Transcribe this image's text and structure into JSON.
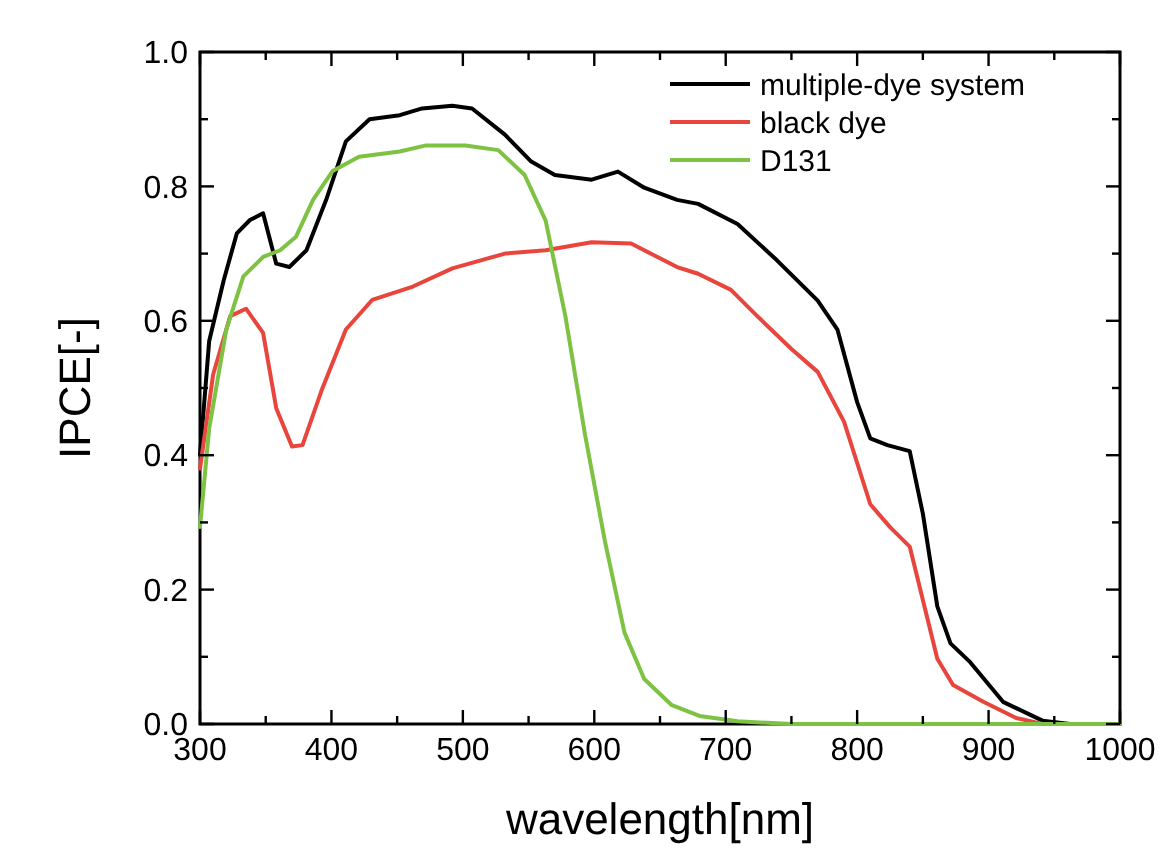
{
  "chart_data": {
    "type": "line",
    "xlabel": "wavelength[nm]",
    "ylabel": "IPCE[-]",
    "xlim": [
      300,
      1000
    ],
    "xticks": [
      300,
      {
        "value": 350,
        "label": null
      },
      400,
      {
        "value": 450,
        "label": null
      },
      500,
      {
        "value": 550,
        "label": null
      },
      600,
      {
        "value": 650,
        "label": null
      },
      700,
      {
        "value": 750,
        "label": null
      },
      800,
      {
        "value": 850,
        "label": null
      },
      900,
      {
        "value": 950,
        "label": null
      },
      1000
    ],
    "ylim": [
      0,
      1
    ],
    "yticks": [
      {
        "value": 0,
        "label": "0.0"
      },
      {
        "value": 0.1,
        "label": null
      },
      {
        "value": 0.2,
        "label": "0.2"
      },
      {
        "value": 0.3,
        "label": null
      },
      {
        "value": 0.4,
        "label": "0.4"
      },
      {
        "value": 0.5,
        "label": null
      },
      {
        "value": 0.6,
        "label": "0.6"
      },
      {
        "value": 0.7,
        "label": null
      },
      {
        "value": 0.8,
        "label": "0.8"
      },
      {
        "value": 0.9,
        "label": null
      },
      {
        "value": 1,
        "label": "1.0"
      }
    ],
    "grid": false,
    "legend": "top right",
    "marker": "none",
    "line_style": "solid",
    "series": [
      {
        "name": "multiple-dye system",
        "color": "#000000",
        "x": [
          300,
          307,
          318,
          328,
          338,
          348,
          358,
          368,
          381,
          396,
          411,
          429,
          452,
          469,
          492,
          507,
          532,
          552,
          570,
          598,
          618,
          638,
          663,
          679,
          709,
          739,
          770,
          785,
          800,
          810,
          823,
          840,
          850,
          861,
          871,
          886,
          911,
          941,
          962,
          1000
        ],
        "values": [
          0.4,
          0.57,
          0.66,
          0.73,
          0.75,
          0.76,
          0.685,
          0.68,
          0.705,
          0.78,
          0.867,
          0.9,
          0.906,
          0.916,
          0.92,
          0.916,
          0.877,
          0.837,
          0.817,
          0.81,
          0.822,
          0.798,
          0.78,
          0.774,
          0.744,
          0.69,
          0.63,
          0.587,
          0.479,
          0.425,
          0.415,
          0.406,
          0.313,
          0.175,
          0.12,
          0.092,
          0.033,
          0.005,
          0,
          0
        ]
      },
      {
        "name": "black dye",
        "color": "#e8453c",
        "x": [
          300,
          310,
          323,
          335,
          348,
          358,
          370,
          378,
          393,
          411,
          431,
          462,
          492,
          532,
          563,
          598,
          628,
          663,
          679,
          704,
          724,
          750,
          770,
          790,
          810,
          825,
          840,
          861,
          873,
          896,
          921,
          941,
          1000
        ],
        "values": [
          0.38,
          0.52,
          0.607,
          0.618,
          0.582,
          0.47,
          0.413,
          0.415,
          0.499,
          0.587,
          0.631,
          0.651,
          0.678,
          0.7,
          0.705,
          0.717,
          0.715,
          0.68,
          0.67,
          0.646,
          0.607,
          0.558,
          0.524,
          0.45,
          0.327,
          0.293,
          0.264,
          0.097,
          0.058,
          0.033,
          0.009,
          0,
          0
        ]
      },
      {
        "name": "D131",
        "color": "#7dc242",
        "x": [
          300,
          307,
          320,
          333,
          348,
          361,
          373,
          386,
          401,
          421,
          452,
          472,
          502,
          527,
          547,
          563,
          578,
          593,
          608,
          623,
          638,
          659,
          680,
          709,
          750,
          1000
        ],
        "values": [
          0.293,
          0.44,
          0.587,
          0.666,
          0.695,
          0.705,
          0.725,
          0.78,
          0.823,
          0.844,
          0.852,
          0.861,
          0.861,
          0.854,
          0.817,
          0.749,
          0.607,
          0.43,
          0.273,
          0.136,
          0.067,
          0.028,
          0.012,
          0.004,
          0,
          0
        ]
      }
    ]
  }
}
